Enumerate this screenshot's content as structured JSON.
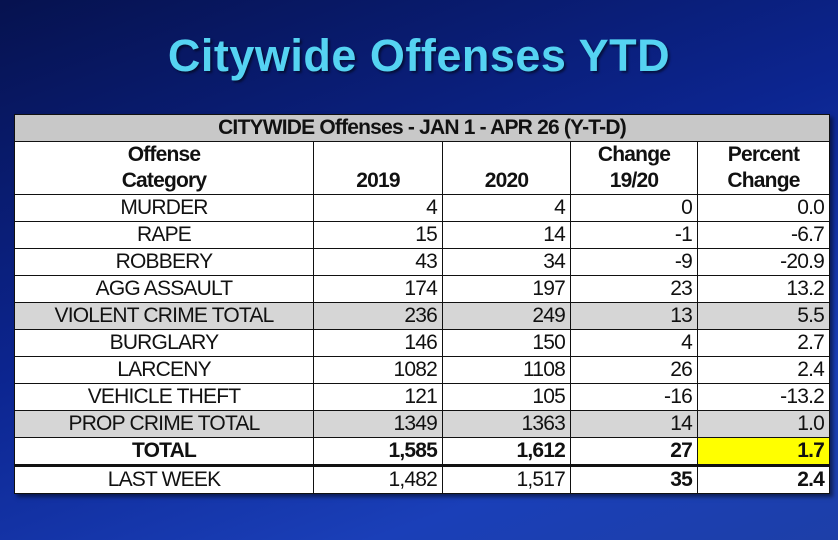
{
  "slide_title": "Citywide Offenses YTD",
  "table": {
    "caption": "CITYWIDE Offenses - JAN 1 - APR 26 (Y-T-D)",
    "header_row1": [
      "Offense",
      "",
      "",
      "Change",
      "Percent"
    ],
    "header_row2": [
      "Category",
      "2019",
      "2020",
      "19/20",
      "Change"
    ],
    "rows": [
      {
        "category": "MURDER",
        "y2019": "4",
        "y2020": "4",
        "change": "0",
        "percent": "0.0",
        "style": ""
      },
      {
        "category": "RAPE",
        "y2019": "15",
        "y2020": "14",
        "change": "-1",
        "percent": "-6.7",
        "style": ""
      },
      {
        "category": "ROBBERY",
        "y2019": "43",
        "y2020": "34",
        "change": "-9",
        "percent": "-20.9",
        "style": ""
      },
      {
        "category": "AGG ASSAULT",
        "y2019": "174",
        "y2020": "197",
        "change": "23",
        "percent": "13.2",
        "style": ""
      },
      {
        "category": "VIOLENT CRIME TOTAL",
        "y2019": "236",
        "y2020": "249",
        "change": "13",
        "percent": "5.5",
        "style": "gray"
      },
      {
        "category": "BURGLARY",
        "y2019": "146",
        "y2020": "150",
        "change": "4",
        "percent": "2.7",
        "style": ""
      },
      {
        "category": "LARCENY",
        "y2019": "1082",
        "y2020": "1108",
        "change": "26",
        "percent": "2.4",
        "style": ""
      },
      {
        "category": "VEHICLE THEFT",
        "y2019": "121",
        "y2020": "105",
        "change": "-16",
        "percent": "-13.2",
        "style": ""
      },
      {
        "category": "PROP CRIME TOTAL",
        "y2019": "1349",
        "y2020": "1363",
        "change": "14",
        "percent": "1.0",
        "style": "gray"
      },
      {
        "category": "TOTAL",
        "y2019": "1,585",
        "y2020": "1,612",
        "change": "27",
        "percent": "1.7",
        "style": "total"
      },
      {
        "category": "LAST WEEK",
        "y2019": "1,482",
        "y2020": "1,517",
        "change": "35",
        "percent": "2.4",
        "style": "lastweek"
      }
    ],
    "highlight_color": "#ffff00"
  }
}
